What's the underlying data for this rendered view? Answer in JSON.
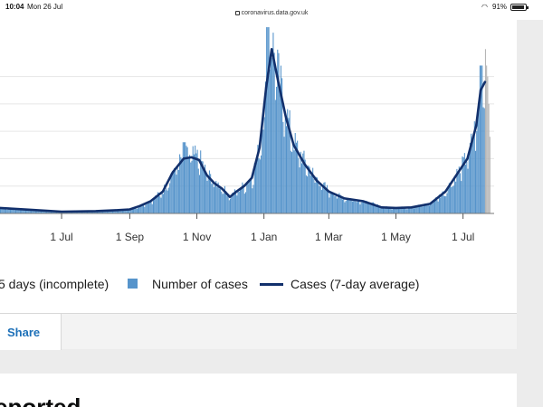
{
  "status_bar": {
    "time": "10:04",
    "date": "Mon 26 Jul",
    "url": "coronavirus.data.gov.uk",
    "battery_text": "91%",
    "battery_level": 0.91
  },
  "legend": {
    "incomplete_label": "5 days (incomplete)",
    "cases_label": "Number of cases",
    "average_label": "Cases (7-day average)"
  },
  "share": {
    "label": "Share"
  },
  "next_heading": {
    "text": "eported"
  },
  "colors": {
    "bar": "#5694cb",
    "incomplete_bar": "#b5b5b5",
    "average_line": "#12306c",
    "gridline": "#e6e6e6",
    "link": "#1d70b8"
  },
  "chart_data": {
    "type": "bar",
    "title": "",
    "xlabel": "",
    "ylabel": "",
    "grid": true,
    "legend_position": "bottom",
    "x_ticks": [
      "1 Jul",
      "1 Sep",
      "1 Nov",
      "1 Jan",
      "1 Mar",
      "1 May",
      "1 Jul"
    ],
    "x_tick_dates": [
      "2020-07-01",
      "2020-09-01",
      "2020-11-01",
      "2021-01-01",
      "2021-03-01",
      "2021-05-01",
      "2021-07-01"
    ],
    "x_range": [
      "2020-05-06",
      "2021-07-26"
    ],
    "series": [
      {
        "name": "Cases (7-day average)",
        "type": "line",
        "points": [
          [
            "2020-05-06",
            2000
          ],
          [
            "2020-06-01",
            1400
          ],
          [
            "2020-07-01",
            650
          ],
          [
            "2020-08-01",
            850
          ],
          [
            "2020-08-20",
            1200
          ],
          [
            "2020-09-01",
            1500
          ],
          [
            "2020-09-10",
            2700
          ],
          [
            "2020-09-20",
            4500
          ],
          [
            "2020-10-01",
            8000
          ],
          [
            "2020-10-10",
            15000
          ],
          [
            "2020-10-20",
            20000
          ],
          [
            "2020-10-27",
            20500
          ],
          [
            "2020-11-03",
            19500
          ],
          [
            "2020-11-10",
            14000
          ],
          [
            "2020-11-17",
            11000
          ],
          [
            "2020-11-24",
            9000
          ],
          [
            "2020-12-01",
            6000
          ],
          [
            "2020-12-07",
            8000
          ],
          [
            "2020-12-14",
            10000
          ],
          [
            "2020-12-21",
            13000
          ],
          [
            "2020-12-28",
            24000
          ],
          [
            "2021-01-03",
            46000
          ],
          [
            "2021-01-08",
            60000
          ],
          [
            "2021-01-14",
            48000
          ],
          [
            "2021-01-21",
            35000
          ],
          [
            "2021-01-28",
            25000
          ],
          [
            "2021-02-07",
            18000
          ],
          [
            "2021-02-18",
            12000
          ],
          [
            "2021-03-01",
            8000
          ],
          [
            "2021-03-15",
            5500
          ],
          [
            "2021-04-01",
            4500
          ],
          [
            "2021-04-12",
            3000
          ],
          [
            "2021-04-18",
            2200
          ],
          [
            "2021-05-01",
            2000
          ],
          [
            "2021-05-15",
            2200
          ],
          [
            "2021-06-01",
            3500
          ],
          [
            "2021-06-15",
            8000
          ],
          [
            "2021-06-25",
            14000
          ],
          [
            "2021-07-05",
            20000
          ],
          [
            "2021-07-13",
            32000
          ],
          [
            "2021-07-17",
            45000
          ],
          [
            "2021-07-21",
            48000
          ]
        ]
      }
    ],
    "bar_series": {
      "name": "Number of cases",
      "daily_values_approx": "bars follow the 7-day average with noise; peak ~68,000 around 2021-01-04",
      "peaks": [
        [
          "2021-01-04",
          68000
        ],
        [
          "2020-10-20",
          26000
        ],
        [
          "2021-07-17",
          54000
        ]
      ]
    },
    "incomplete_series": {
      "name": "5 days (incomplete)",
      "last_days": [
        [
          "2021-07-21",
          60000
        ],
        [
          "2021-07-22",
          54000
        ],
        [
          "2021-07-23",
          50000
        ],
        [
          "2021-07-24",
          40000
        ],
        [
          "2021-07-25",
          28000
        ]
      ]
    },
    "ylim": [
      0,
      70000
    ]
  }
}
